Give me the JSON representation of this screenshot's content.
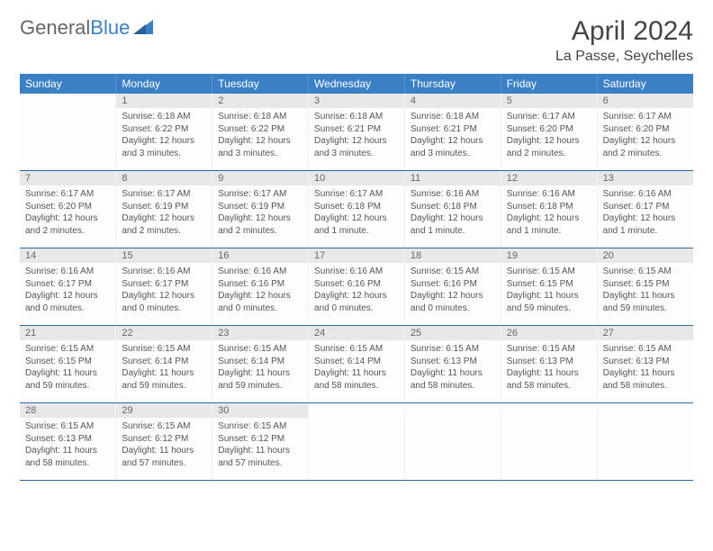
{
  "brand": {
    "part1": "General",
    "part2": "Blue"
  },
  "title": "April 2024",
  "location": "La Passe, Seychelles",
  "colors": {
    "header_bg": "#3b7fc4",
    "header_text": "#ffffff",
    "daynum_bg": "#e8e8e8",
    "daynum_text": "#666666",
    "cell_text": "#555555",
    "row_divider": "#2f6aa8"
  },
  "day_headers": [
    "Sunday",
    "Monday",
    "Tuesday",
    "Wednesday",
    "Thursday",
    "Friday",
    "Saturday"
  ],
  "weeks": [
    {
      "nums": [
        "",
        "1",
        "2",
        "3",
        "4",
        "5",
        "6"
      ],
      "cells": [
        {
          "sunrise": "",
          "sunset": "",
          "daylight": ""
        },
        {
          "sunrise": "Sunrise: 6:18 AM",
          "sunset": "Sunset: 6:22 PM",
          "daylight": "Daylight: 12 hours and 3 minutes."
        },
        {
          "sunrise": "Sunrise: 6:18 AM",
          "sunset": "Sunset: 6:22 PM",
          "daylight": "Daylight: 12 hours and 3 minutes."
        },
        {
          "sunrise": "Sunrise: 6:18 AM",
          "sunset": "Sunset: 6:21 PM",
          "daylight": "Daylight: 12 hours and 3 minutes."
        },
        {
          "sunrise": "Sunrise: 6:18 AM",
          "sunset": "Sunset: 6:21 PM",
          "daylight": "Daylight: 12 hours and 3 minutes."
        },
        {
          "sunrise": "Sunrise: 6:17 AM",
          "sunset": "Sunset: 6:20 PM",
          "daylight": "Daylight: 12 hours and 2 minutes."
        },
        {
          "sunrise": "Sunrise: 6:17 AM",
          "sunset": "Sunset: 6:20 PM",
          "daylight": "Daylight: 12 hours and 2 minutes."
        }
      ]
    },
    {
      "nums": [
        "7",
        "8",
        "9",
        "10",
        "11",
        "12",
        "13"
      ],
      "cells": [
        {
          "sunrise": "Sunrise: 6:17 AM",
          "sunset": "Sunset: 6:20 PM",
          "daylight": "Daylight: 12 hours and 2 minutes."
        },
        {
          "sunrise": "Sunrise: 6:17 AM",
          "sunset": "Sunset: 6:19 PM",
          "daylight": "Daylight: 12 hours and 2 minutes."
        },
        {
          "sunrise": "Sunrise: 6:17 AM",
          "sunset": "Sunset: 6:19 PM",
          "daylight": "Daylight: 12 hours and 2 minutes."
        },
        {
          "sunrise": "Sunrise: 6:17 AM",
          "sunset": "Sunset: 6:18 PM",
          "daylight": "Daylight: 12 hours and 1 minute."
        },
        {
          "sunrise": "Sunrise: 6:16 AM",
          "sunset": "Sunset: 6:18 PM",
          "daylight": "Daylight: 12 hours and 1 minute."
        },
        {
          "sunrise": "Sunrise: 6:16 AM",
          "sunset": "Sunset: 6:18 PM",
          "daylight": "Daylight: 12 hours and 1 minute."
        },
        {
          "sunrise": "Sunrise: 6:16 AM",
          "sunset": "Sunset: 6:17 PM",
          "daylight": "Daylight: 12 hours and 1 minute."
        }
      ]
    },
    {
      "nums": [
        "14",
        "15",
        "16",
        "17",
        "18",
        "19",
        "20"
      ],
      "cells": [
        {
          "sunrise": "Sunrise: 6:16 AM",
          "sunset": "Sunset: 6:17 PM",
          "daylight": "Daylight: 12 hours and 0 minutes."
        },
        {
          "sunrise": "Sunrise: 6:16 AM",
          "sunset": "Sunset: 6:17 PM",
          "daylight": "Daylight: 12 hours and 0 minutes."
        },
        {
          "sunrise": "Sunrise: 6:16 AM",
          "sunset": "Sunset: 6:16 PM",
          "daylight": "Daylight: 12 hours and 0 minutes."
        },
        {
          "sunrise": "Sunrise: 6:16 AM",
          "sunset": "Sunset: 6:16 PM",
          "daylight": "Daylight: 12 hours and 0 minutes."
        },
        {
          "sunrise": "Sunrise: 6:15 AM",
          "sunset": "Sunset: 6:16 PM",
          "daylight": "Daylight: 12 hours and 0 minutes."
        },
        {
          "sunrise": "Sunrise: 6:15 AM",
          "sunset": "Sunset: 6:15 PM",
          "daylight": "Daylight: 11 hours and 59 minutes."
        },
        {
          "sunrise": "Sunrise: 6:15 AM",
          "sunset": "Sunset: 6:15 PM",
          "daylight": "Daylight: 11 hours and 59 minutes."
        }
      ]
    },
    {
      "nums": [
        "21",
        "22",
        "23",
        "24",
        "25",
        "26",
        "27"
      ],
      "cells": [
        {
          "sunrise": "Sunrise: 6:15 AM",
          "sunset": "Sunset: 6:15 PM",
          "daylight": "Daylight: 11 hours and 59 minutes."
        },
        {
          "sunrise": "Sunrise: 6:15 AM",
          "sunset": "Sunset: 6:14 PM",
          "daylight": "Daylight: 11 hours and 59 minutes."
        },
        {
          "sunrise": "Sunrise: 6:15 AM",
          "sunset": "Sunset: 6:14 PM",
          "daylight": "Daylight: 11 hours and 59 minutes."
        },
        {
          "sunrise": "Sunrise: 6:15 AM",
          "sunset": "Sunset: 6:14 PM",
          "daylight": "Daylight: 11 hours and 58 minutes."
        },
        {
          "sunrise": "Sunrise: 6:15 AM",
          "sunset": "Sunset: 6:13 PM",
          "daylight": "Daylight: 11 hours and 58 minutes."
        },
        {
          "sunrise": "Sunrise: 6:15 AM",
          "sunset": "Sunset: 6:13 PM",
          "daylight": "Daylight: 11 hours and 58 minutes."
        },
        {
          "sunrise": "Sunrise: 6:15 AM",
          "sunset": "Sunset: 6:13 PM",
          "daylight": "Daylight: 11 hours and 58 minutes."
        }
      ]
    },
    {
      "nums": [
        "28",
        "29",
        "30",
        "",
        "",
        "",
        ""
      ],
      "cells": [
        {
          "sunrise": "Sunrise: 6:15 AM",
          "sunset": "Sunset: 6:13 PM",
          "daylight": "Daylight: 11 hours and 58 minutes."
        },
        {
          "sunrise": "Sunrise: 6:15 AM",
          "sunset": "Sunset: 6:12 PM",
          "daylight": "Daylight: 11 hours and 57 minutes."
        },
        {
          "sunrise": "Sunrise: 6:15 AM",
          "sunset": "Sunset: 6:12 PM",
          "daylight": "Daylight: 11 hours and 57 minutes."
        },
        {
          "sunrise": "",
          "sunset": "",
          "daylight": ""
        },
        {
          "sunrise": "",
          "sunset": "",
          "daylight": ""
        },
        {
          "sunrise": "",
          "sunset": "",
          "daylight": ""
        },
        {
          "sunrise": "",
          "sunset": "",
          "daylight": ""
        }
      ]
    }
  ]
}
